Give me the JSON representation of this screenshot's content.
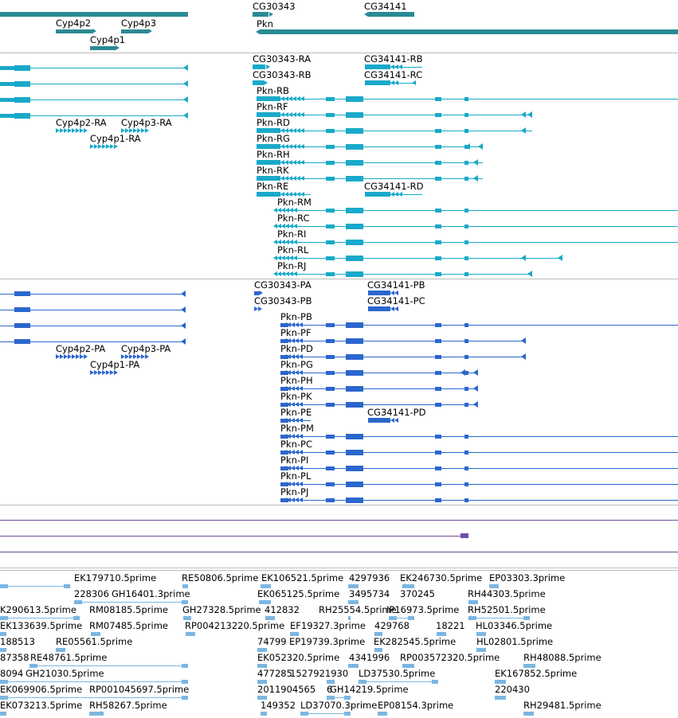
{
  "colors": {
    "gene": "#2a8a94",
    "rna": "#19a9c9",
    "protein": "#2b66cc",
    "purple": "#6f4d9a",
    "purple_block": "#6f4da8",
    "est": "#7bb6e2",
    "separator": "#bbbbbb"
  },
  "genes": [
    {
      "name": "Cyp4p2",
      "label": "Cyp4p2"
    },
    {
      "name": "Cyp4p3",
      "label": "Cyp4p3"
    },
    {
      "name": "Cyp4p1",
      "label": "Cyp4p1"
    },
    {
      "name": "CG30343",
      "label": "CG30343"
    },
    {
      "name": "CG34141",
      "label": "CG34141"
    },
    {
      "name": "Pkn",
      "label": "Pkn"
    }
  ],
  "transcripts": {
    "cyp": [
      "Cyp4p2-RA",
      "Cyp4p3-RA",
      "Cyp4p1-RA"
    ],
    "cg30343": [
      "CG30343-RA",
      "CG30343-RB"
    ],
    "cg34141": [
      "CG34141-RB",
      "CG34141-RC",
      "CG34141-RD"
    ],
    "pkn_upper": [
      "Pkn-RB",
      "Pkn-RF",
      "Pkn-RD",
      "Pkn-RG",
      "Pkn-RH",
      "Pkn-RK",
      "Pkn-RE"
    ],
    "pkn_lower": [
      "Pkn-RM",
      "Pkn-RC",
      "Pkn-RI",
      "Pkn-RL",
      "Pkn-RJ"
    ]
  },
  "proteins": {
    "cyp": [
      "Cyp4p2-PA",
      "Cyp4p3-PA",
      "Cyp4p1-PA"
    ],
    "cg30343": [
      "CG30343-PA",
      "CG30343-PB"
    ],
    "cg34141": [
      "CG34141-PB",
      "CG34141-PC",
      "CG34141-PD"
    ],
    "pkn": [
      "Pkn-PB",
      "Pkn-PF",
      "Pkn-PD",
      "Pkn-PG",
      "Pkn-PH",
      "Pkn-PK",
      "Pkn-PE",
      "Pkn-PM",
      "Pkn-PC",
      "Pkn-PI",
      "Pkn-PL",
      "Pkn-PJ"
    ]
  },
  "est_rows": [
    [
      "EK179710.5prime",
      "RE50806.5prime",
      "EK106521.5prime",
      "4297936",
      "EK246730.5prime",
      "EP03303.3prime"
    ],
    [
      "228306",
      "GH16401.3prime",
      "EK065125.5prime",
      "3495734",
      "370245",
      "RH44303.5prime"
    ],
    [
      "K290613.5prime",
      "RM08185.5prime",
      "GH27328.5prime",
      "412832",
      "RH25554.5prime",
      "IP16973.5prime",
      "RH52501.5prime"
    ],
    [
      "EK133639.5prime",
      "RM07485.5prime",
      "RP004213220.5prime",
      "EF19327.3prime",
      "429768",
      "18221",
      "HL03346.5prime"
    ],
    [
      "188513",
      "RE05561.5prime",
      "74799",
      "EP19739.3prime",
      "EK282545.5prime",
      "HL02801.5prime"
    ],
    [
      "87358",
      "RE48761.5prime",
      "EK052320.5prime",
      "4341996",
      "RP003572320.5prime",
      "RH48088.5prime"
    ],
    [
      "8094",
      "GH21030.5prime",
      "477285",
      "1527921930",
      "LD37530.5prime",
      "EK167852.5prime"
    ],
    [
      "EK069906.5prime",
      "RP001045697.5prime",
      "2011904565",
      "6",
      "GH14219.5prime",
      "220430"
    ],
    [
      "EK073213.5prime",
      "RH58267.5prime",
      "149352",
      "LD37070.3prime",
      "EP08154.3prime",
      "RH29481.5prime"
    ]
  ]
}
